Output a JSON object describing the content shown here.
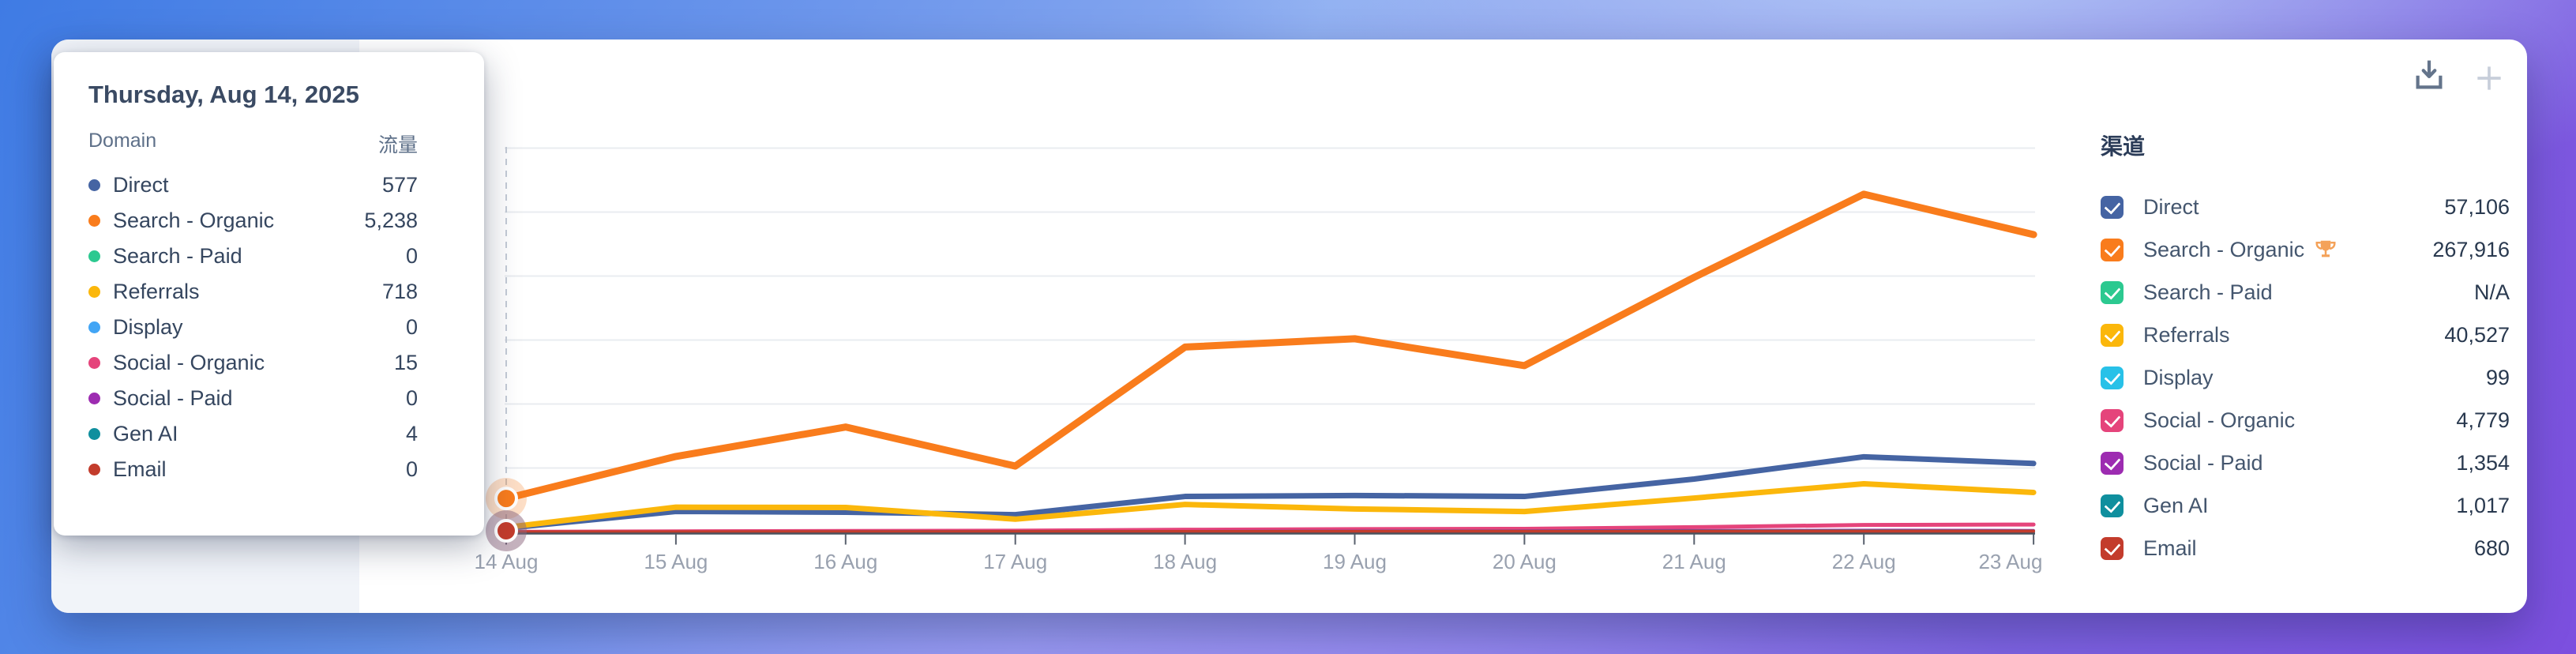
{
  "background": {
    "gradient_top_left": "#3F7BE4",
    "gradient_top_right": "#A7CDF6",
    "gradient_bottom": "#7C4FDF"
  },
  "card": {
    "background": "#FFFFFF",
    "left_panel_color": "#F1F4F9"
  },
  "toolbar": {
    "download_icon": "download-tray-arrow",
    "add_icon": "plus"
  },
  "tooltip": {
    "title": "Thursday, Aug 14, 2025",
    "col_domain": "Domain",
    "col_traffic": "流量",
    "rows": [
      {
        "label": "Direct",
        "value": "577",
        "color": "#4564A3"
      },
      {
        "label": "Search - Organic",
        "value": "5,238",
        "color": "#F97C1C"
      },
      {
        "label": "Search - Paid",
        "value": "0",
        "color": "#2CC990"
      },
      {
        "label": "Referrals",
        "value": "718",
        "color": "#FBB70B"
      },
      {
        "label": "Display",
        "value": "0",
        "color": "#42A5F5"
      },
      {
        "label": "Social - Organic",
        "value": "15",
        "color": "#E5447B"
      },
      {
        "label": "Social - Paid",
        "value": "0",
        "color": "#9D2CB1"
      },
      {
        "label": "Gen AI",
        "value": "4",
        "color": "#0F8F9E"
      },
      {
        "label": "Email",
        "value": "0",
        "color": "#C33C2C"
      }
    ]
  },
  "legend": {
    "title": "渠道",
    "items": [
      {
        "label": "Direct",
        "value": "57,106",
        "color": "#4564A3",
        "trophy": false
      },
      {
        "label": "Search - Organic",
        "value": "267,916",
        "color": "#F97C1C",
        "trophy": true
      },
      {
        "label": "Search - Paid",
        "value": "N/A",
        "color": "#2CC990",
        "trophy": false
      },
      {
        "label": "Referrals",
        "value": "40,527",
        "color": "#FBB70B",
        "trophy": false
      },
      {
        "label": "Display",
        "value": "99",
        "color": "#28C1E8",
        "trophy": false
      },
      {
        "label": "Social - Organic",
        "value": "4,779",
        "color": "#E5447B",
        "trophy": false
      },
      {
        "label": "Social - Paid",
        "value": "1,354",
        "color": "#9D2CB1",
        "trophy": false
      },
      {
        "label": "Gen AI",
        "value": "1,017",
        "color": "#0F8F9E",
        "trophy": false
      },
      {
        "label": "Email",
        "value": "680",
        "color": "#C33C2C",
        "trophy": false
      }
    ]
  },
  "chart_data": {
    "type": "line",
    "x": [
      "14 Aug",
      "15 Aug",
      "16 Aug",
      "17 Aug",
      "18 Aug",
      "19 Aug",
      "20 Aug",
      "21 Aug",
      "22 Aug",
      "23 Aug"
    ],
    "ylim": [
      0,
      65000
    ],
    "gridline_step": 10000,
    "grid": "horizontal",
    "legend_position": "right",
    "series": [
      {
        "name": "Direct",
        "color": "#4564A3",
        "width": 7,
        "values": [
          577,
          3210,
          3090,
          2700,
          5550,
          5700,
          5550,
          8270,
          11750,
          10709
        ]
      },
      {
        "name": "Search - Organic",
        "color": "#F97C1C",
        "width": 9,
        "values": [
          5238,
          11800,
          16400,
          10300,
          28900,
          30200,
          26000,
          39800,
          52800,
          46478
        ]
      },
      {
        "name": "Search - Paid",
        "color": "#2CC990",
        "width": 3.5,
        "values": [
          0,
          0,
          0,
          0,
          0,
          0,
          0,
          0,
          0,
          0
        ]
      },
      {
        "name": "Referrals",
        "color": "#FBB70B",
        "width": 7,
        "values": [
          718,
          3870,
          3830,
          2000,
          4300,
          3600,
          3200,
          5300,
          7530,
          6179
        ]
      },
      {
        "name": "Display",
        "color": "#42A5F5",
        "width": 3.5,
        "values": [
          0,
          0,
          5,
          8,
          10,
          12,
          15,
          18,
          16,
          15
        ]
      },
      {
        "name": "Social - Organic",
        "color": "#E5447B",
        "width": 5,
        "values": [
          15,
          100,
          150,
          200,
          350,
          450,
          500,
          750,
          1100,
          1164
        ]
      },
      {
        "name": "Social - Paid",
        "color": "#9D2CB1",
        "width": 3.5,
        "values": [
          0,
          20,
          40,
          60,
          100,
          150,
          180,
          250,
          300,
          254
        ]
      },
      {
        "name": "Gen AI",
        "color": "#0F8F9E",
        "width": 3.5,
        "values": [
          4,
          30,
          50,
          70,
          90,
          110,
          130,
          170,
          200,
          163
        ]
      },
      {
        "name": "Email",
        "color": "#C33C2C",
        "width": 4,
        "values": [
          0,
          20,
          30,
          40,
          60,
          80,
          90,
          110,
          130,
          120
        ]
      }
    ],
    "hover": {
      "x_label": "14 Aug",
      "index": 0,
      "markers": [
        {
          "series": "Search - Organic",
          "value": 5238,
          "color": "#F97C1C",
          "halo": "rgba(249,124,28,0.25)"
        },
        {
          "series": "Email",
          "value": 0,
          "color": "#C33C2C",
          "halo": "rgba(139,102,126,0.5)"
        }
      ]
    }
  }
}
